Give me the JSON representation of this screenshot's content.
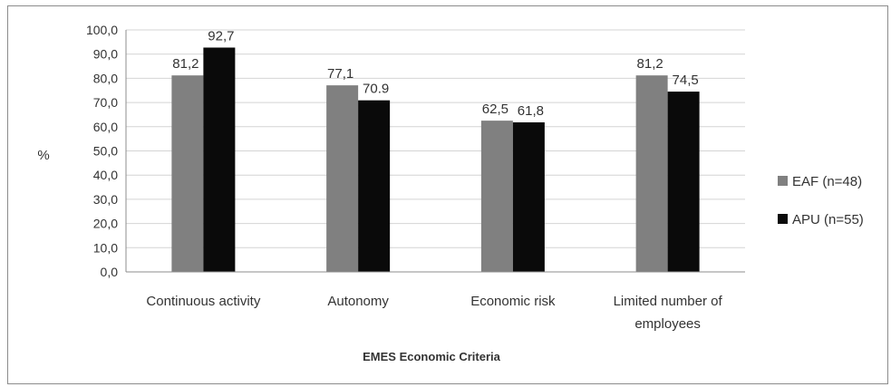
{
  "chart_data": {
    "type": "bar",
    "categories": [
      "Continuous activity",
      "Autonomy",
      "Economic risk",
      "Limited number of employees"
    ],
    "series": [
      {
        "name": "EAF (n=48)",
        "color": "#808080",
        "values": [
          81.2,
          77.1,
          62.5,
          81.2
        ],
        "labels": [
          "81,2",
          "77,1",
          "62,5",
          "81,2"
        ]
      },
      {
        "name": "APU (n=55)",
        "color": "#0a0a0a",
        "values": [
          92.7,
          70.9,
          61.8,
          74.5
        ],
        "labels": [
          "92,7",
          "70.9",
          "61,8",
          "74,5"
        ]
      }
    ],
    "ylim": [
      0,
      100
    ],
    "yticks": [
      "0,0",
      "10,0",
      "20,0",
      "30,0",
      "40,0",
      "50,0",
      "60,0",
      "70,0",
      "80,0",
      "90,0",
      "100,0"
    ],
    "ylabel": "%",
    "xlabel": "EMES Economic Criteria",
    "grid": true,
    "legend_position": "right"
  }
}
